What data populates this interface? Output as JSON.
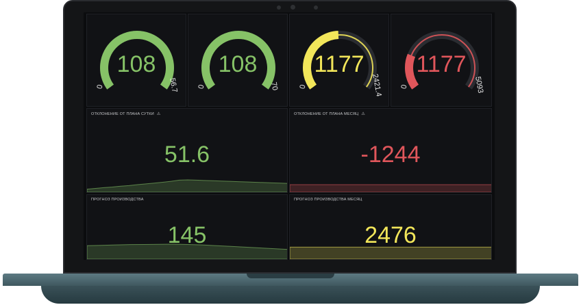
{
  "colors": {
    "green": "#86c267",
    "yellow": "#f2e65a",
    "red": "#e0565b",
    "track": "#2a2c31"
  },
  "gauges": [
    {
      "value": "108",
      "min": "0",
      "max": "56.7",
      "fraction": 1.0,
      "color": "green"
    },
    {
      "value": "108",
      "min": "0",
      "max": "70",
      "fraction": 1.0,
      "color": "green"
    },
    {
      "value": "1177",
      "min": "0",
      "max": "2421.4",
      "fraction": 0.49,
      "color": "yellow"
    },
    {
      "value": "1177",
      "min": "0",
      "max": "5093",
      "fraction": 0.23,
      "color": "red"
    }
  ],
  "stats": [
    {
      "title": "ОТКЛОНЕНИЕ ОТ ПЛАНА СУТКИ",
      "value": "51.6",
      "color": "green",
      "warning": true,
      "spark": [
        0.2,
        0.25,
        0.3,
        0.34,
        0.4,
        0.44,
        0.5,
        0.55,
        0.6,
        0.66,
        0.72,
        0.8,
        0.82,
        0.8,
        0.78,
        0.76,
        0.74,
        0.72,
        0.7,
        0.68,
        0.66,
        0.64,
        0.62,
        0.6,
        0.58
      ]
    },
    {
      "title": "ОТКЛОНЕНИЕ ОТ ПЛАНА МЕСЯЦ",
      "value": "-1244",
      "color": "red",
      "warning": true,
      "spark": [
        0.5,
        0.5,
        0.5,
        0.5,
        0.5,
        0.5,
        0.5,
        0.5,
        0.5,
        0.5,
        0.5,
        0.5
      ]
    },
    {
      "title": "ПРОГНОЗ ПРОИЗВОДСТВА",
      "value": "145",
      "color": "green",
      "warning": false,
      "spark": [
        0.9,
        0.92,
        0.95,
        0.97,
        0.98,
        0.99,
        1.0,
        0.98,
        0.95,
        0.9,
        0.85,
        0.8,
        0.75,
        0.7,
        0.65
      ]
    },
    {
      "title": "ПРОГНОЗ ПРОИЗВОДСТВА МЕСЯЦ",
      "value": "2476",
      "color": "yellow",
      "warning": false,
      "spark": [
        0.8,
        0.8,
        0.8,
        0.8,
        0.8,
        0.8,
        0.8,
        0.8,
        0.8,
        0.8,
        0.8,
        0.8
      ]
    }
  ]
}
